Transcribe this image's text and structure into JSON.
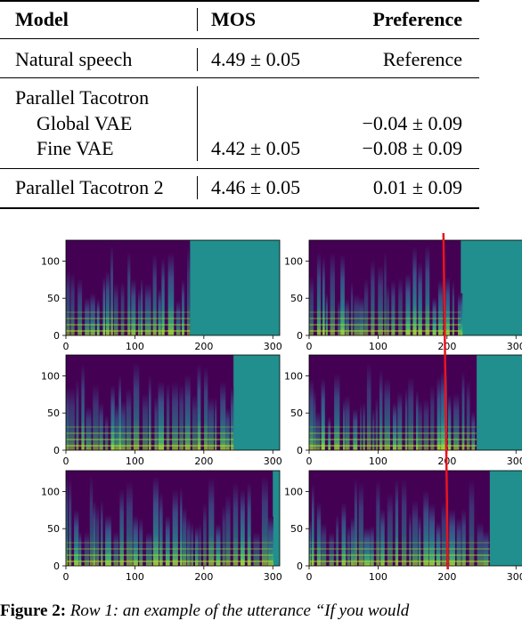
{
  "table": {
    "headers": {
      "model": "Model",
      "mos": "MOS",
      "preference": "Preference"
    },
    "rows": [
      {
        "model": "Natural speech",
        "mos": "4.49 ± 0.05",
        "preference": "Reference"
      },
      {
        "model": "Parallel Tacotron",
        "mos": "",
        "preference": ""
      },
      {
        "model": "Global VAE",
        "mos": "",
        "preference": "−0.04 ± 0.09"
      },
      {
        "model": "Fine VAE",
        "mos": "4.42 ± 0.05",
        "preference": "−0.08 ± 0.09"
      },
      {
        "model": "Parallel Tacotron 2",
        "mos": "4.46 ± 0.05",
        "preference": "0.01 ± 0.09"
      }
    ]
  },
  "chart_data": {
    "type": "heatmap",
    "panels": [
      {
        "position": "row 1, left",
        "frames": 180,
        "x_ticks": [
          0,
          100,
          200,
          300
        ],
        "y_ticks": [
          0,
          50,
          100
        ]
      },
      {
        "position": "row 1, right",
        "frames": 220,
        "x_ticks": [
          0,
          100,
          200,
          300
        ],
        "y_ticks": [
          0,
          50,
          100
        ],
        "red_line_x": 196
      },
      {
        "position": "row 2, left",
        "frames": 243,
        "x_ticks": [
          0,
          100,
          200,
          300
        ],
        "y_ticks": [
          0,
          50,
          100
        ]
      },
      {
        "position": "row 2, right",
        "frames": 243,
        "x_ticks": [
          0,
          100,
          200,
          300
        ],
        "y_ticks": [
          0,
          50,
          100
        ],
        "red_line_x": 196
      },
      {
        "position": "row 3, left",
        "frames": 300,
        "x_ticks": [
          0,
          100,
          200,
          300
        ],
        "y_ticks": [
          0,
          50,
          100
        ]
      },
      {
        "position": "row 3, right",
        "frames": 262,
        "x_ticks": [
          0,
          100,
          200,
          300
        ],
        "y_ticks": [
          0,
          50,
          100
        ],
        "red_line_x": 196
      }
    ],
    "y_max": 128,
    "x_max": 310,
    "colors": {
      "background_fill": "#218f8d",
      "low": "#440154",
      "mid": "#31688e",
      "high": "#b5de2b",
      "marker": "#e8141e"
    }
  },
  "caption": {
    "label": "Figure 2:",
    "text": "Row 1: an example of the utterance “If you would"
  }
}
